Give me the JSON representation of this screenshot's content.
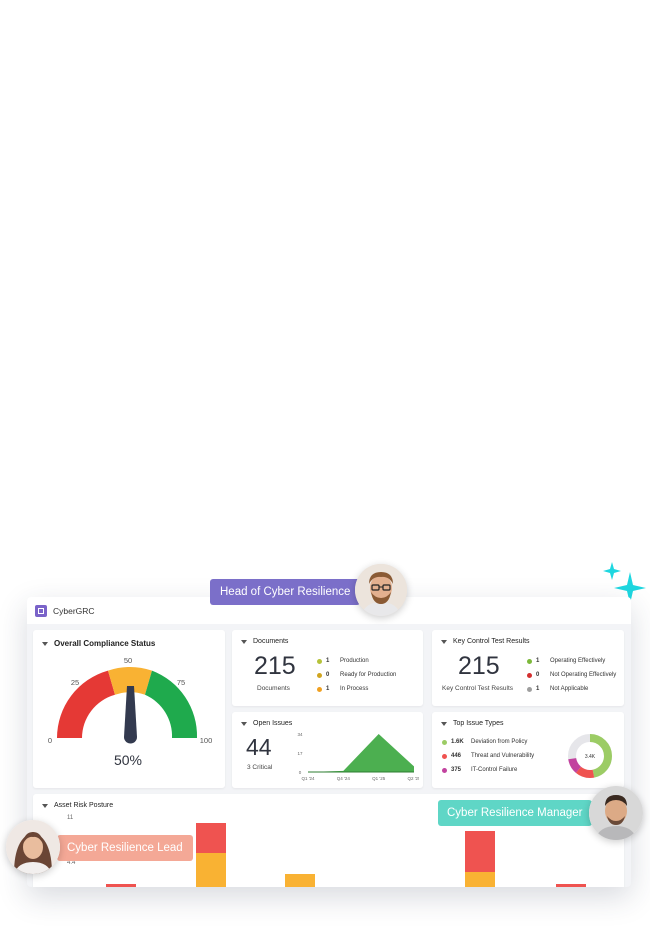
{
  "app": {
    "name": "CyberGRC"
  },
  "compliance": {
    "title": "Overall Compliance Status",
    "percent": "50%",
    "value": 50,
    "ticks": [
      "0",
      "25",
      "50",
      "75",
      "100"
    ]
  },
  "documents": {
    "title": "Documents",
    "total": "215",
    "total_label": "Documents",
    "items": [
      {
        "count": "1",
        "label": "Production",
        "color": "#b5c23a"
      },
      {
        "count": "0",
        "label": "Ready for Production",
        "color": "#d0a520"
      },
      {
        "count": "1",
        "label": "In Process",
        "color": "#f0a020"
      }
    ]
  },
  "key_control": {
    "title": "Key Control Test Results",
    "total": "215",
    "total_label": "Key Control Test Results",
    "items": [
      {
        "count": "1",
        "label": "Operating Effectively",
        "color": "#7cb83a"
      },
      {
        "count": "0",
        "label": "Not Operating Effectively",
        "color": "#d32f2f"
      },
      {
        "count": "1",
        "label": "Not Applicable",
        "color": "#9e9e9e"
      }
    ]
  },
  "open_issues": {
    "title": "Open Issues",
    "total": "44",
    "critical": "3 Critical",
    "chart_data": {
      "type": "area",
      "x": [
        "Q1 '24",
        "Q4 '24",
        "Q1 '25",
        "Q2 '25"
      ],
      "y_ticks": [
        "34",
        "17",
        "0"
      ],
      "values": [
        0,
        1,
        34,
        5
      ],
      "ylim": [
        0,
        34
      ]
    }
  },
  "top_issues": {
    "title": "Top Issue Types",
    "center_label": "3.4K",
    "items": [
      {
        "count": "1.6K",
        "label": "Deviation from Policy",
        "color": "#9ccc65"
      },
      {
        "count": "446",
        "label": "Threat and Vulnerability",
        "color": "#ef5350"
      },
      {
        "count": "375",
        "label": "IT-Control Failure",
        "color": "#c2439f"
      }
    ]
  },
  "asset_risk": {
    "title": "Asset Risk Posture",
    "y_ticks": [
      "11",
      "4.4"
    ]
  },
  "badges": {
    "head": "Head of Cyber Resilience",
    "manager": "Cyber Resilience Manager",
    "lead": "Cyber Resilience Lead"
  },
  "colors": {
    "purple": "#7b6fc9",
    "teal": "#5fd6c6",
    "salmon": "#f4a896",
    "gauge_red": "#e53935",
    "gauge_yellow": "#f9b233",
    "gauge_green": "#1faa4d",
    "area_green": "#4caf50",
    "sparkle": "#1ed7e0"
  }
}
